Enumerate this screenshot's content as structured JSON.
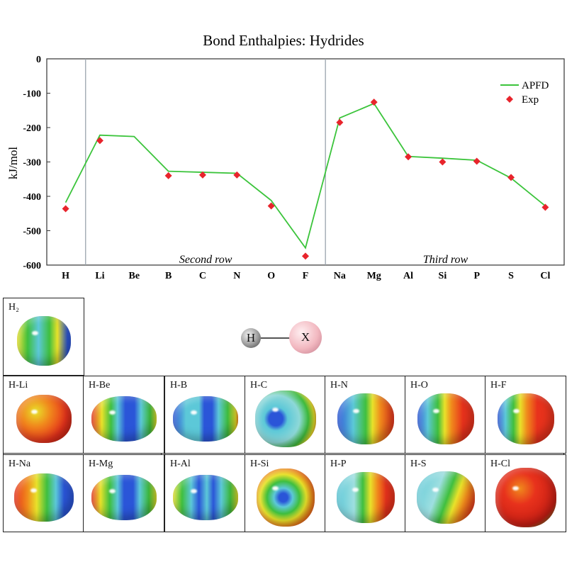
{
  "chart_data": {
    "type": "line",
    "title": "Bond Enthalpies: Hydrides",
    "ylabel": "kJ/mol",
    "xlabel": "",
    "categories": [
      "H",
      "Li",
      "Be",
      "B",
      "C",
      "N",
      "O",
      "F",
      "Na",
      "Mg",
      "Al",
      "Si",
      "P",
      "S",
      "Cl"
    ],
    "ylim": [
      -600,
      0
    ],
    "yticks": [
      0,
      -100,
      -200,
      -300,
      -400,
      -500,
      -600
    ],
    "series": [
      {
        "name": "APFD",
        "kind": "line",
        "color": "#3bc43b",
        "values": [
          -418,
          -222,
          -226,
          -327,
          -330,
          -333,
          -412,
          -550,
          -172,
          -130,
          -284,
          -289,
          -295,
          -347,
          -428
        ]
      },
      {
        "name": "Exp",
        "kind": "marker",
        "color": "#e8242c",
        "values": [
          -436,
          -238,
          null,
          -340,
          -338,
          -338,
          -428,
          -574,
          -185,
          -126,
          -285,
          -300,
          -298,
          -345,
          -432
        ]
      }
    ],
    "row_labels": [
      {
        "text": "Second row",
        "at": 4.5
      },
      {
        "text": "Third row",
        "at": 11.5
      }
    ],
    "separators_after": [
      0,
      7
    ],
    "legend_position": "top-right",
    "grid": false
  },
  "diagram": {
    "atom_a": "H",
    "atom_b": "X"
  },
  "gallery": {
    "h2": {
      "label": "H₂"
    },
    "cells": [
      {
        "label": "H-Li"
      },
      {
        "label": "H-Be"
      },
      {
        "label": "H-B"
      },
      {
        "label": "H-C"
      },
      {
        "label": "H-N"
      },
      {
        "label": "H-O"
      },
      {
        "label": "H-F"
      },
      {
        "label": "H-Na"
      },
      {
        "label": "H-Mg"
      },
      {
        "label": "H-Al"
      },
      {
        "label": "H-Si"
      },
      {
        "label": "H-P"
      },
      {
        "label": "H-S"
      },
      {
        "label": "H-Cl"
      }
    ]
  },
  "colors": {
    "red": "#e8321c",
    "orange": "#f08a1c",
    "yellow": "#e8e22a",
    "green": "#3fbf3f",
    "cyan": "#5cc8d8",
    "blue": "#2a55d8",
    "dark_blue": "#1c3aa8"
  }
}
